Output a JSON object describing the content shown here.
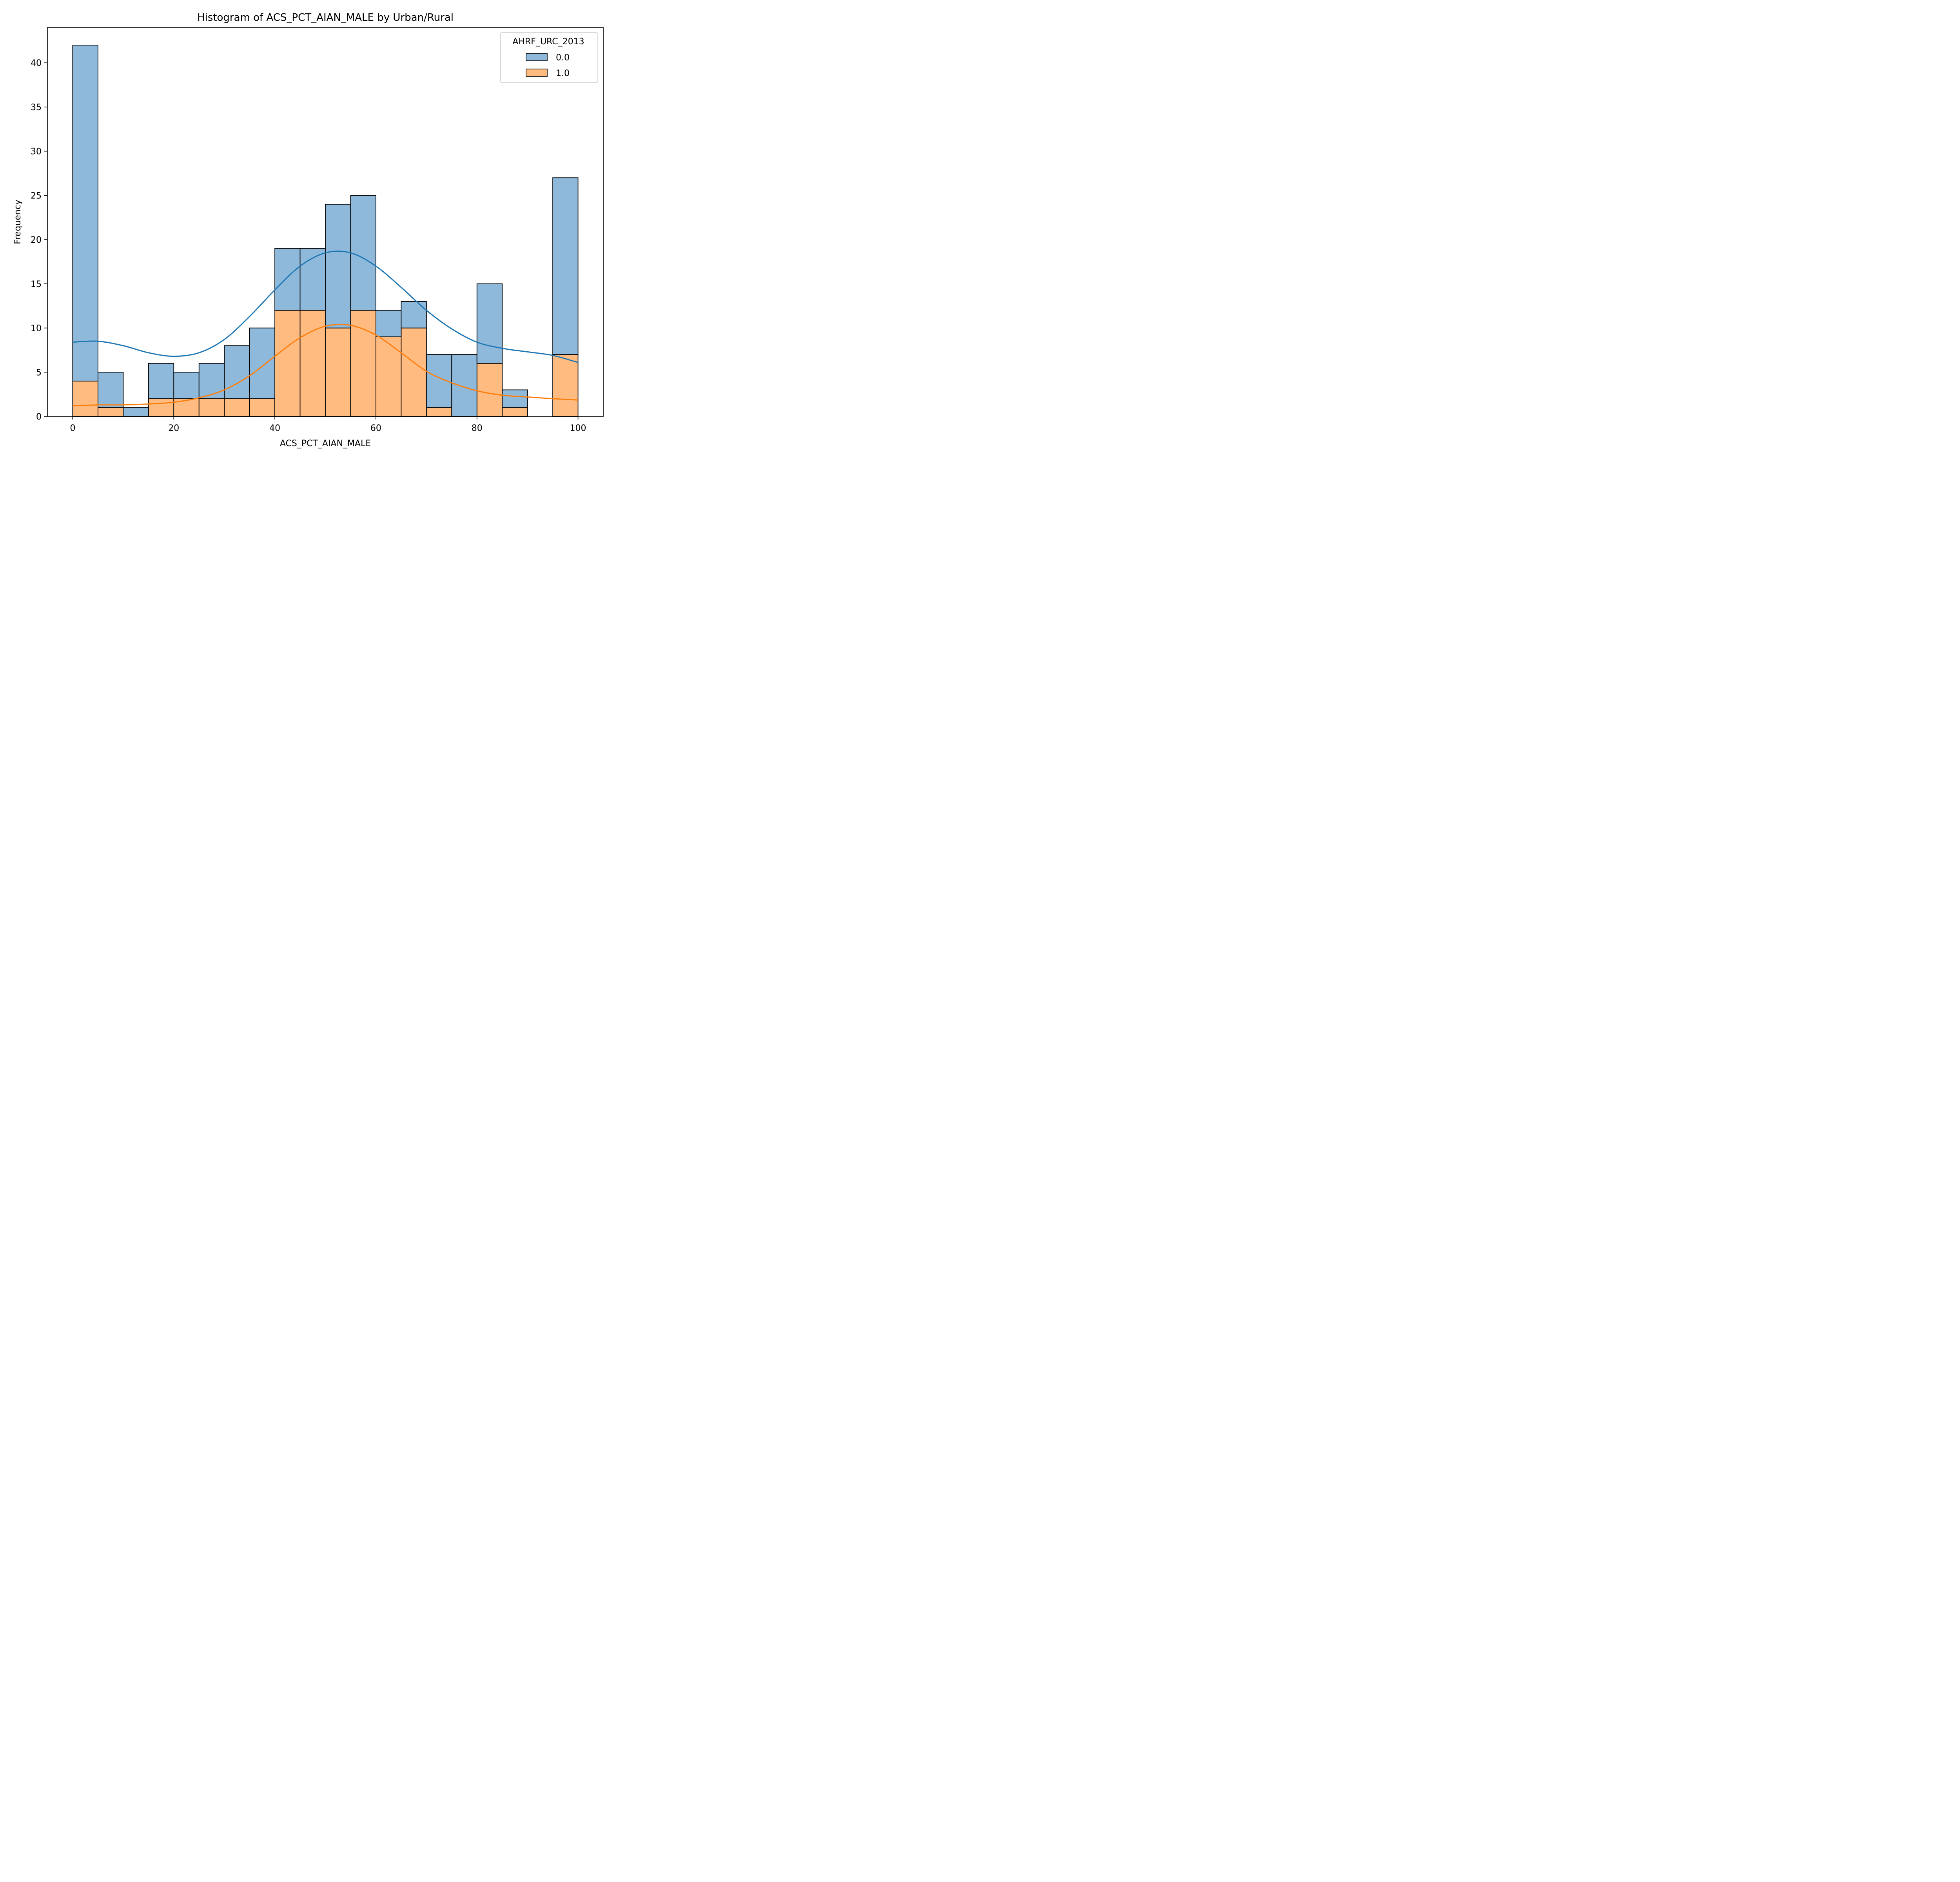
{
  "chart_data": {
    "type": "histogram",
    "stacked": true,
    "title": "Histogram of ACS_PCT_AIAN_MALE by Urban/Rural",
    "xlabel": "ACS_PCT_AIAN_MALE",
    "ylabel": "Frequency",
    "xlim": [
      -5,
      105
    ],
    "ylim": [
      0,
      44
    ],
    "xticks": [
      0,
      20,
      40,
      60,
      80,
      100
    ],
    "yticks": [
      0,
      5,
      10,
      15,
      20,
      25,
      30,
      35,
      40
    ],
    "bin_edges": [
      0,
      5,
      10,
      15,
      20,
      25,
      30,
      35,
      40,
      45,
      50,
      55,
      60,
      65,
      70,
      75,
      80,
      85,
      90,
      95,
      100
    ],
    "legend": {
      "title": "AHRF_URC_2013",
      "placement": "top-right"
    },
    "series": [
      {
        "name": "1.0",
        "color": "#ffbb80",
        "line_color": "#ff7f0e",
        "counts": [
          4,
          1,
          0,
          2,
          2,
          2,
          2,
          2,
          12,
          12,
          10,
          12,
          9,
          10,
          1,
          0,
          6,
          1,
          0,
          7
        ],
        "kde": {
          "x": [
            0,
            5,
            10,
            15,
            20,
            25,
            30,
            35,
            40,
            45,
            50,
            55,
            60,
            65,
            70,
            75,
            80,
            85,
            90,
            95,
            100
          ],
          "y": [
            1.2,
            1.3,
            1.3,
            1.4,
            1.6,
            2.1,
            3.0,
            4.6,
            6.8,
            8.9,
            10.2,
            10.3,
            9.2,
            7.2,
            5.1,
            3.8,
            2.9,
            2.4,
            2.2,
            2.0,
            1.85
          ]
        }
      },
      {
        "name": "0.0",
        "color": "#8fb9da",
        "line_color": "#1f77b4",
        "counts": [
          38,
          4,
          1,
          4,
          3,
          4,
          6,
          8,
          7,
          7,
          14,
          13,
          3,
          3,
          6,
          7,
          9,
          2,
          0,
          20
        ],
        "totals": [
          42,
          5,
          1,
          6,
          5,
          6,
          8,
          10,
          19,
          19,
          24,
          25,
          12,
          13,
          7,
          7,
          15,
          3,
          0,
          27
        ],
        "kde": {
          "x": [
            0,
            5,
            10,
            15,
            20,
            25,
            30,
            35,
            40,
            45,
            50,
            55,
            60,
            65,
            70,
            75,
            80,
            85,
            90,
            95,
            100
          ],
          "y": [
            8.4,
            8.5,
            8.0,
            7.2,
            6.8,
            7.2,
            8.7,
            11.3,
            14.3,
            17.0,
            18.5,
            18.5,
            17.0,
            14.6,
            12.0,
            9.9,
            8.4,
            7.7,
            7.3,
            6.9,
            6.1
          ]
        }
      }
    ]
  }
}
